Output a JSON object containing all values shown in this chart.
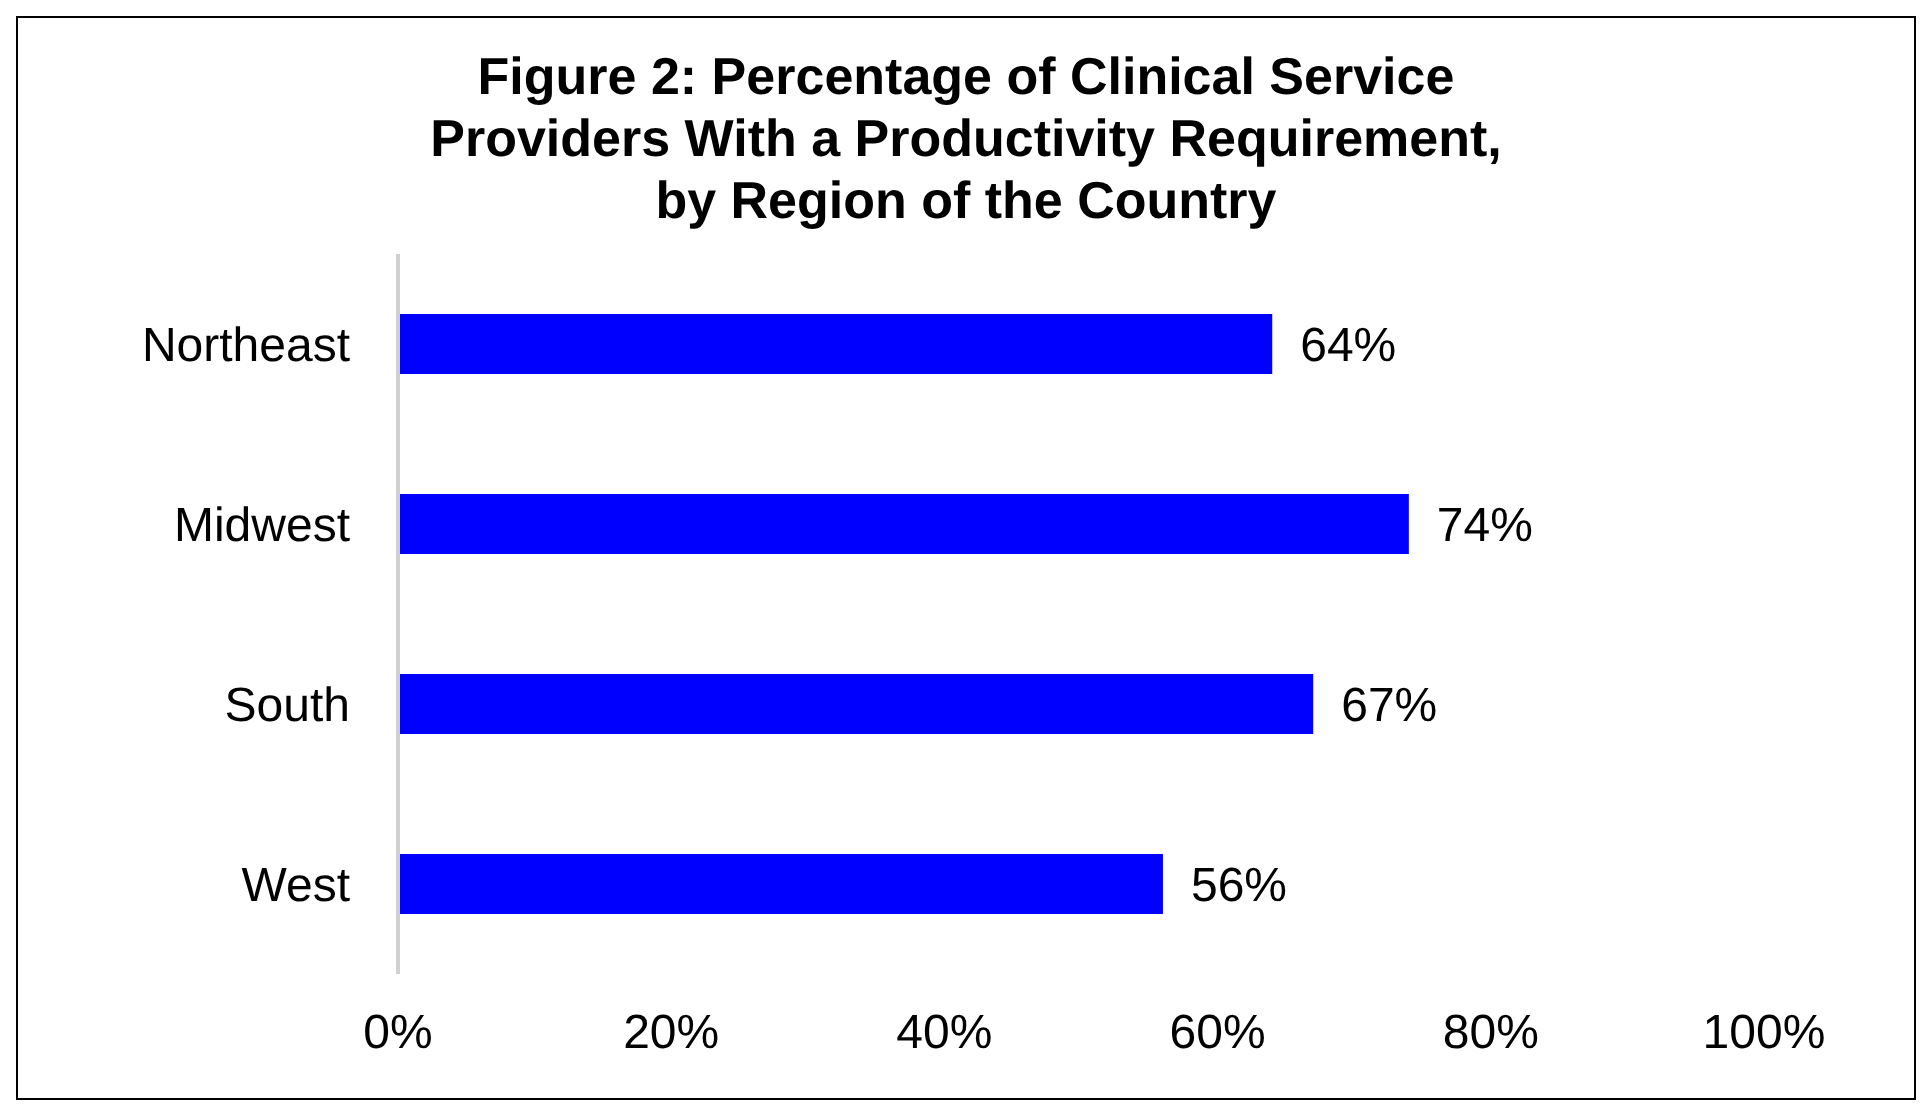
{
  "chart_data": {
    "type": "bar",
    "orientation": "horizontal",
    "title": "Figure 2: Percentage of Clinical Service\nProviders With a Productivity Requirement,\nby Region of the Country",
    "categories": [
      "Northeast",
      "Midwest",
      "South",
      "West"
    ],
    "values": [
      64,
      74,
      67,
      56
    ],
    "color": "#0000ff",
    "value_labels": [
      "64%",
      "74%",
      "67%",
      "56%"
    ],
    "xlim": [
      0,
      100
    ],
    "xticks": [
      {
        "value": 0,
        "label": "0%"
      },
      {
        "value": 20,
        "label": "20%"
      },
      {
        "value": 40,
        "label": "40%"
      },
      {
        "value": 60,
        "label": "60%"
      },
      {
        "value": 80,
        "label": "80%"
      },
      {
        "value": 100,
        "label": "100%"
      }
    ],
    "grid": false,
    "legend": false
  }
}
